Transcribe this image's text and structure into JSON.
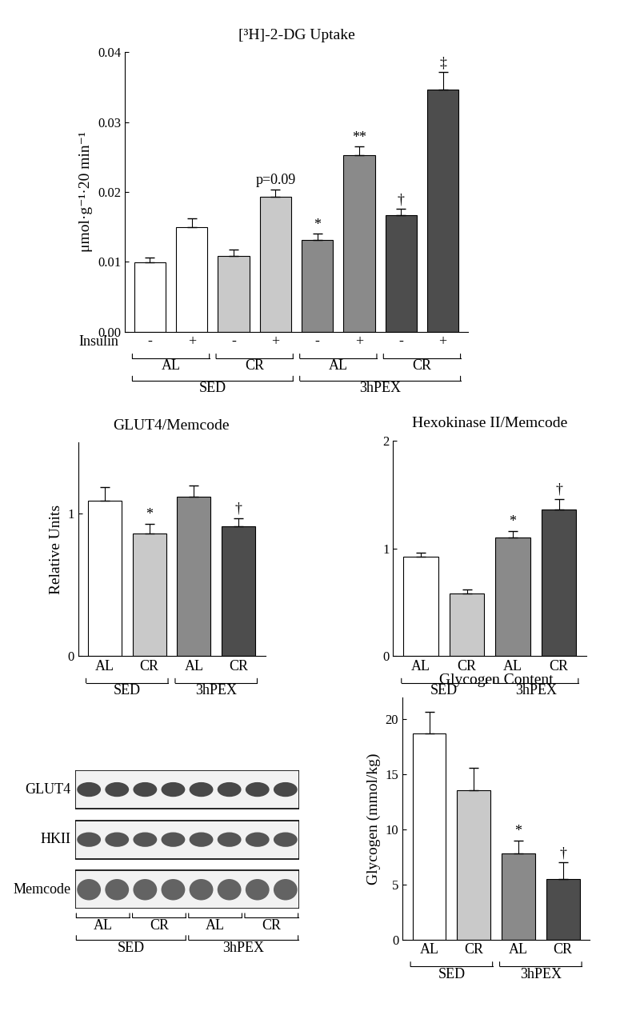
{
  "chart_data": [
    {
      "type": "bar",
      "title": "[³H]-2-DG Uptake",
      "ylabel": "μmol·g⁻¹·20 min⁻¹",
      "xlabel": "Insulin",
      "categories": [
        "-",
        "+",
        "-",
        "+",
        "-",
        "+",
        "-",
        "+"
      ],
      "values": [
        0.0099,
        0.015,
        0.0109,
        0.0193,
        0.0131,
        0.0253,
        0.0167,
        0.0347
      ],
      "errors": [
        0.0007,
        0.0012,
        0.0009,
        0.0011,
        0.0009,
        0.0012,
        0.0009,
        0.0025
      ],
      "colors": [
        "#ffffff",
        "#ffffff",
        "#c9c9c9",
        "#c9c9c9",
        "#8a8a8a",
        "#8a8a8a",
        "#4d4d4d",
        "#4d4d4d"
      ],
      "groups": [
        {
          "label": "AL",
          "categories": [
            0,
            1
          ]
        },
        {
          "label": "CR",
          "categories": [
            2,
            3
          ]
        },
        {
          "label": "AL",
          "categories": [
            4,
            5
          ]
        },
        {
          "label": "CR",
          "categories": [
            6,
            7
          ]
        }
      ],
      "supergroups": [
        {
          "label": "SED",
          "categories": [
            0,
            3
          ]
        },
        {
          "label": "3hPEX",
          "categories": [
            4,
            7
          ]
        }
      ],
      "annotations": [
        {
          "text": "p=0.09",
          "category": 3
        },
        {
          "text": "*",
          "category": 4
        },
        {
          "text": "**",
          "category": 5
        },
        {
          "text": "†",
          "category": 6
        },
        {
          "text": "‡",
          "category": 7
        }
      ],
      "ylim": [
        0,
        0.04
      ],
      "yticks": [
        {
          "value": 0,
          "label": "0.00"
        },
        {
          "value": 0.01,
          "label": "0.01"
        },
        {
          "value": 0.02,
          "label": "0.02"
        },
        {
          "value": 0.03,
          "label": "0.03"
        },
        {
          "value": 0.04,
          "label": "0.04"
        }
      ]
    },
    {
      "type": "bar",
      "title": "GLUT4/Memcode",
      "ylabel": "Relative Units",
      "categories": [
        "AL",
        "CR",
        "AL",
        "CR"
      ],
      "values": [
        1.09,
        0.86,
        1.12,
        0.91
      ],
      "errors": [
        0.1,
        0.07,
        0.08,
        0.06
      ],
      "colors": [
        "#ffffff",
        "#c9c9c9",
        "#8a8a8a",
        "#4d4d4d"
      ],
      "supergroups": [
        {
          "label": "SED",
          "categories": [
            0,
            1
          ]
        },
        {
          "label": "3hPEX",
          "categories": [
            2,
            3
          ]
        }
      ],
      "annotations": [
        {
          "text": "*",
          "category": 1
        },
        {
          "text": "†",
          "category": 3
        }
      ],
      "ylim": [
        0,
        1.5
      ],
      "yticks": [
        0,
        1
      ]
    },
    {
      "type": "bar",
      "title": "Hexokinase II/Memcode",
      "categories": [
        "AL",
        "CR",
        "AL",
        "CR"
      ],
      "values": [
        0.92,
        0.58,
        1.1,
        1.36
      ],
      "errors": [
        0.04,
        0.04,
        0.06,
        0.1
      ],
      "colors": [
        "#ffffff",
        "#c9c9c9",
        "#8a8a8a",
        "#4d4d4d"
      ],
      "supergroups": [
        {
          "label": "SED",
          "categories": [
            0,
            1
          ]
        },
        {
          "label": "3hPEX",
          "categories": [
            2,
            3
          ]
        }
      ],
      "annotations": [
        {
          "text": "*",
          "category": 2
        },
        {
          "text": "†",
          "category": 3
        }
      ],
      "ylim": [
        0,
        2
      ],
      "yticks": [
        0,
        1,
        2
      ]
    },
    {
      "type": "bar",
      "title": "Glycogen Content",
      "ylabel": "Glycogen (mmol/kg)",
      "categories": [
        "AL",
        "CR",
        "AL",
        "CR"
      ],
      "values": [
        18.7,
        13.6,
        7.8,
        5.5
      ],
      "errors": [
        2.0,
        2.0,
        1.2,
        1.5
      ],
      "colors": [
        "#ffffff",
        "#c9c9c9",
        "#8a8a8a",
        "#4d4d4d"
      ],
      "supergroups": [
        {
          "label": "SED",
          "categories": [
            0,
            1
          ]
        },
        {
          "label": "3hPEX",
          "categories": [
            2,
            3
          ]
        }
      ],
      "annotations": [
        {
          "text": "*",
          "category": 2
        },
        {
          "text": "†",
          "category": 3
        }
      ],
      "ylim": [
        0,
        22
      ],
      "yticks": [
        0,
        5,
        10,
        15,
        20
      ]
    }
  ],
  "blot": {
    "rows": [
      "GLUT4",
      "HKII",
      "Memcode"
    ],
    "groups": [
      {
        "label": "AL",
        "lanes": [
          0,
          1
        ]
      },
      {
        "label": "CR",
        "lanes": [
          2,
          3
        ]
      },
      {
        "label": "AL",
        "lanes": [
          4,
          5
        ]
      },
      {
        "label": "CR",
        "lanes": [
          6,
          7
        ]
      }
    ],
    "supergroups": [
      {
        "label": "SED",
        "lanes": [
          0,
          3
        ]
      },
      {
        "label": "3hPEX",
        "lanes": [
          4,
          7
        ]
      }
    ]
  }
}
